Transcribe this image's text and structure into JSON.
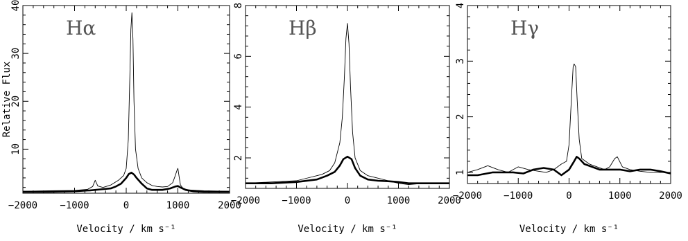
{
  "chart_data": [
    {
      "type": "line",
      "panel_label": "Hα",
      "xlabel": "Velocity / km s⁻¹",
      "ylabel": "Relative Flux",
      "xlim": [
        -2000,
        2000
      ],
      "ylim": [
        0.8,
        40
      ],
      "xticks": [
        -2000,
        -1000,
        0,
        1000,
        2000
      ],
      "xtick_labels": [
        "−2000",
        "−1000",
        "0",
        "1000",
        "2000"
      ],
      "yticks": [
        10,
        20,
        30,
        40
      ],
      "ytick_labels": [
        "10",
        "20",
        "30",
        "40"
      ],
      "grid": false,
      "series": [
        {
          "style": "thin",
          "x": [
            -2000,
            -1500,
            -1000,
            -750,
            -650,
            -600,
            -550,
            -450,
            -300,
            -150,
            -50,
            0,
            40,
            70,
            90,
            110,
            130,
            150,
            180,
            230,
            300,
            400,
            500,
            600,
            700,
            800,
            900,
            950,
            980,
            1000,
            1020,
            1050,
            1100,
            1200,
            1500,
            2000
          ],
          "y": [
            1.2,
            1.3,
            1.4,
            1.6,
            2.2,
            3.5,
            2.3,
            2.0,
            2.5,
            3.5,
            4.5,
            6.0,
            12.0,
            25.0,
            35.0,
            38.5,
            33.0,
            20.0,
            10.0,
            6.0,
            4.0,
            3.0,
            2.4,
            2.2,
            2.1,
            2.2,
            3.0,
            4.5,
            5.5,
            6.0,
            4.5,
            2.5,
            1.8,
            1.5,
            1.3,
            1.2
          ]
        },
        {
          "style": "thick",
          "x": [
            -2000,
            -1500,
            -1000,
            -700,
            -500,
            -300,
            -200,
            -100,
            0,
            50,
            100,
            150,
            200,
            300,
            400,
            500,
            700,
            850,
            950,
            1000,
            1050,
            1150,
            1300,
            1500,
            2000
          ],
          "y": [
            1.1,
            1.1,
            1.2,
            1.4,
            1.6,
            1.8,
            2.2,
            2.8,
            4.0,
            4.8,
            5.1,
            4.7,
            4.0,
            2.8,
            1.8,
            1.5,
            1.5,
            1.8,
            2.2,
            2.3,
            2.0,
            1.5,
            1.2,
            1.1,
            1.1
          ]
        }
      ]
    },
    {
      "type": "line",
      "panel_label": "Hβ",
      "xlabel": "Velocity / km s⁻¹",
      "ylabel": "",
      "xlim": [
        -2000,
        2000
      ],
      "ylim": [
        0.8,
        8
      ],
      "xticks": [
        -2000,
        -1000,
        0,
        1000,
        2000
      ],
      "xtick_labels": [
        "−2000",
        "−1000",
        "0",
        "1000",
        "2000"
      ],
      "yticks": [
        2,
        4,
        6,
        8
      ],
      "ytick_labels": [
        "2",
        "4",
        "6",
        "8"
      ],
      "grid": false,
      "series": [
        {
          "style": "thin",
          "x": [
            -2000,
            -1500,
            -1000,
            -700,
            -500,
            -350,
            -250,
            -150,
            -100,
            -60,
            -30,
            0,
            30,
            60,
            100,
            150,
            250,
            400,
            600,
            800,
            1000,
            1200,
            1500,
            1700,
            2000
          ],
          "y": [
            1.0,
            1.05,
            1.1,
            1.25,
            1.35,
            1.5,
            1.8,
            2.6,
            3.6,
            5.2,
            6.7,
            7.3,
            6.5,
            4.8,
            3.0,
            2.0,
            1.5,
            1.3,
            1.2,
            1.1,
            1.0,
            0.95,
            1.0,
            1.0,
            1.0
          ]
        },
        {
          "style": "thick",
          "x": [
            -2000,
            -1500,
            -1000,
            -600,
            -400,
            -250,
            -150,
            -80,
            0,
            80,
            150,
            250,
            400,
            600,
            800,
            1000,
            1200,
            1500,
            2000
          ],
          "y": [
            1.0,
            1.0,
            1.05,
            1.15,
            1.3,
            1.45,
            1.7,
            1.95,
            2.05,
            1.95,
            1.6,
            1.3,
            1.15,
            1.1,
            1.08,
            1.05,
            1.0,
            1.0,
            1.0
          ]
        }
      ]
    },
    {
      "type": "line",
      "panel_label": "Hγ",
      "xlabel": "Velocity / km s⁻¹",
      "ylabel": "",
      "xlim": [
        -2000,
        2000
      ],
      "ylim": [
        0.8,
        4
      ],
      "xticks": [
        -2000,
        -1000,
        0,
        1000,
        2000
      ],
      "xtick_labels": [
        "−2000",
        "−1000",
        "0",
        "1000",
        "2000"
      ],
      "yticks": [
        1,
        2,
        3,
        4
      ],
      "ytick_labels": [
        "1",
        "2",
        "3",
        "4"
      ],
      "grid": false,
      "series": [
        {
          "style": "thin",
          "x": [
            -2000,
            -1800,
            -1600,
            -1400,
            -1200,
            -1000,
            -800,
            -600,
            -450,
            -300,
            -150,
            -50,
            0,
            50,
            80,
            100,
            130,
            160,
            200,
            250,
            400,
            550,
            700,
            800,
            900,
            950,
            1050,
            1200,
            1400,
            1600,
            1800,
            2000
          ],
          "y": [
            1.0,
            1.05,
            1.12,
            1.05,
            1.0,
            1.1,
            1.05,
            1.02,
            1.0,
            1.05,
            1.15,
            1.2,
            1.5,
            2.4,
            2.9,
            2.95,
            2.9,
            2.3,
            1.6,
            1.25,
            1.15,
            1.1,
            1.05,
            1.1,
            1.25,
            1.28,
            1.1,
            1.05,
            1.02,
            1.0,
            1.0,
            1.0
          ]
        },
        {
          "style": "thick",
          "x": [
            -2000,
            -1800,
            -1500,
            -1300,
            -1100,
            -900,
            -700,
            -500,
            -300,
            -150,
            0,
            100,
            150,
            200,
            300,
            450,
            600,
            800,
            1000,
            1200,
            1400,
            1600,
            1800,
            2000
          ],
          "y": [
            0.95,
            0.95,
            1.0,
            1.0,
            1.0,
            0.98,
            1.05,
            1.08,
            1.05,
            0.95,
            1.05,
            1.2,
            1.28,
            1.25,
            1.15,
            1.1,
            1.05,
            1.05,
            1.05,
            1.02,
            1.05,
            1.05,
            1.02,
            0.98
          ]
        }
      ]
    }
  ]
}
